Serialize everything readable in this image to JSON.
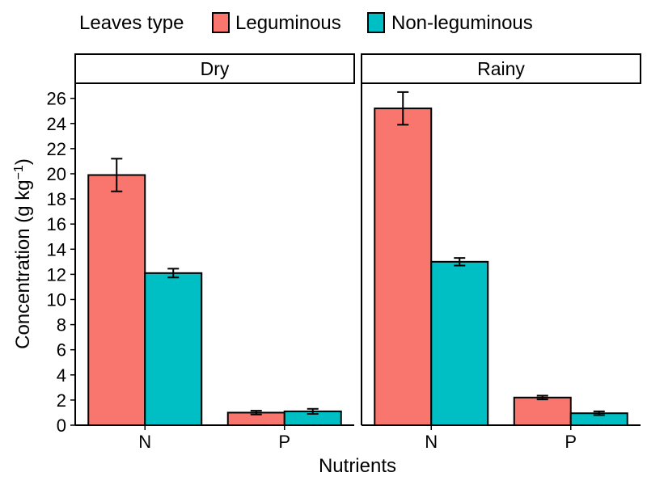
{
  "chart_data": {
    "type": "bar",
    "legend": {
      "title": "Leaves type",
      "position": "top",
      "entries": [
        {
          "label": "Leguminous",
          "color": "#F8766D"
        },
        {
          "label": "Non-leguminous",
          "color": "#00BFC4"
        }
      ]
    },
    "categories": [
      "N",
      "P"
    ],
    "panels": [
      {
        "strip": "Dry",
        "series": [
          {
            "name": "Leguminous",
            "values": [
              19.9,
              1.0
            ],
            "errors": [
              1.3,
              0.15
            ]
          },
          {
            "name": "Non-leguminous",
            "values": [
              12.1,
              1.1
            ],
            "errors": [
              0.35,
              0.2
            ]
          }
        ]
      },
      {
        "strip": "Rainy",
        "series": [
          {
            "name": "Leguminous",
            "values": [
              25.2,
              2.2
            ],
            "errors": [
              1.3,
              0.15
            ]
          },
          {
            "name": "Non-leguminous",
            "values": [
              13.0,
              0.95
            ],
            "errors": [
              0.3,
              0.15
            ]
          }
        ]
      }
    ],
    "xlabel": "Nutrients",
    "ylabel_main": "Concentration (g kg",
    "ylabel_sup": "−1",
    "ylabel_end": ")",
    "ylim": [
      0,
      27.2
    ],
    "yticks": [
      "0",
      "2",
      "4",
      "6",
      "8",
      "10",
      "12",
      "14",
      "16",
      "18",
      "20",
      "22",
      "24",
      "26"
    ],
    "grid": false,
    "error_bars": true
  }
}
